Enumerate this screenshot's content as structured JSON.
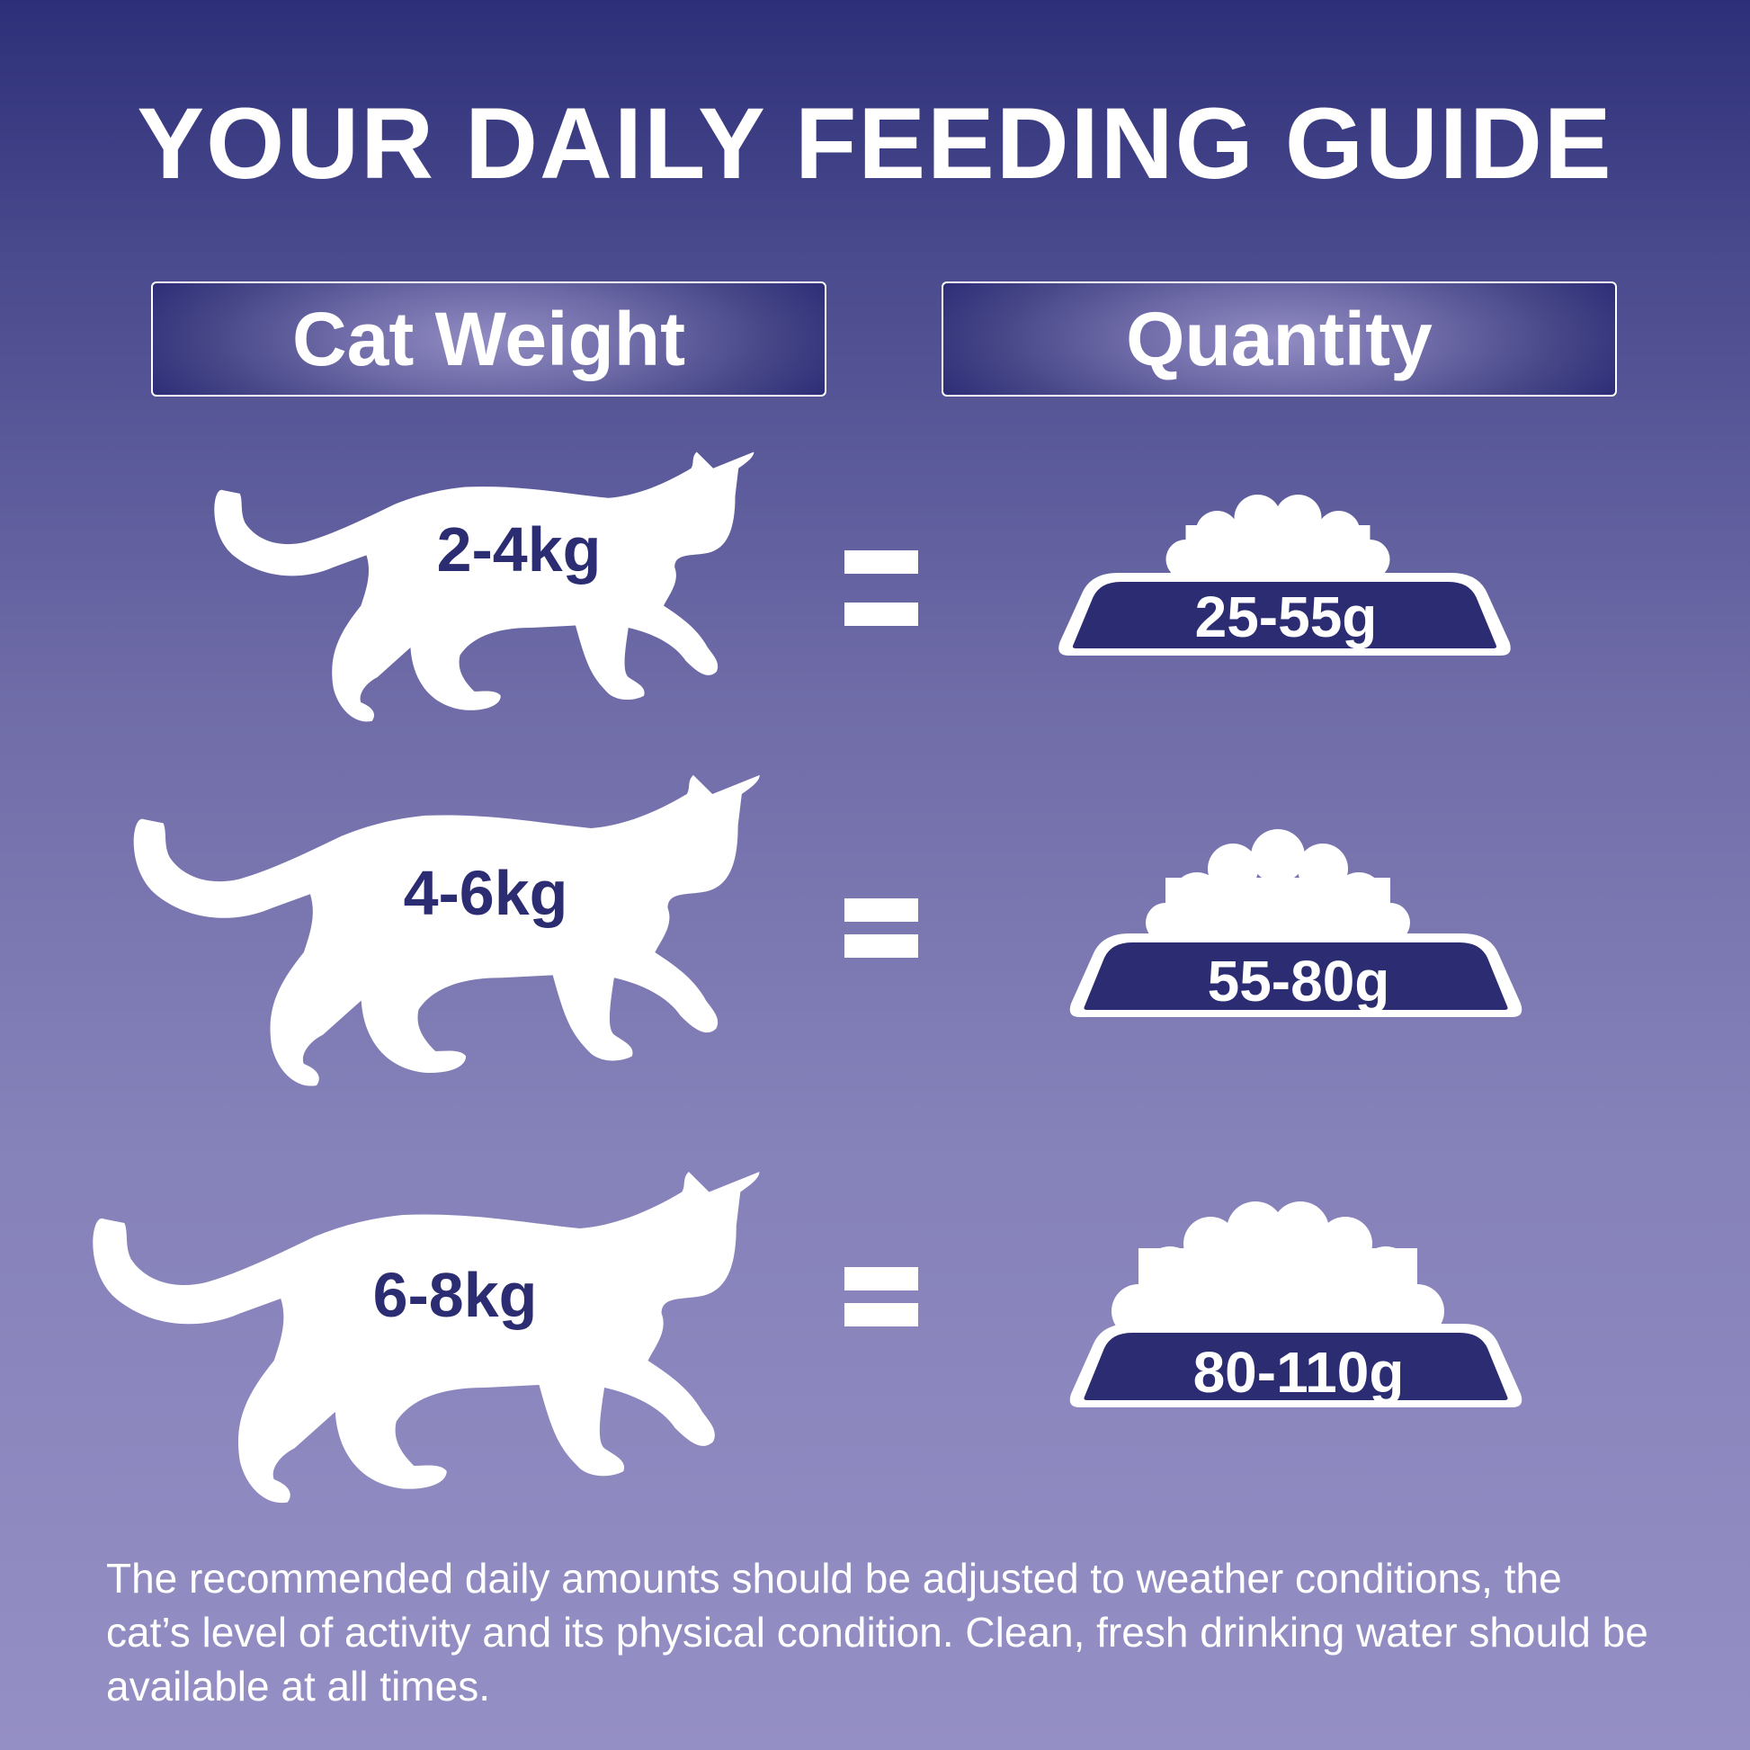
{
  "title": "YOUR DAILY FEEDING GUIDE",
  "headers": {
    "weight": "Cat Weight",
    "quantity": "Quantity"
  },
  "rows": [
    {
      "weight": "2-4kg",
      "quantity": "25-55g",
      "icon": "cat-silhouette-icon",
      "bowl_icon": "food-bowl-icon"
    },
    {
      "weight": "4-6kg",
      "quantity": "55-80g",
      "icon": "cat-silhouette-icon",
      "bowl_icon": "food-bowl-icon"
    },
    {
      "weight": "6-8kg",
      "quantity": "80-110g",
      "icon": "cat-silhouette-icon",
      "bowl_icon": "food-bowl-icon"
    }
  ],
  "footer": "The recommended daily amounts should be adjusted to weather conditions, the cat’s level of activity and its physical condition. Clean, fresh drinking water should be available at all times.",
  "colors": {
    "navy": "#2b2c72",
    "background_top": "#2d2f78",
    "background_bottom": "#948fc4"
  }
}
